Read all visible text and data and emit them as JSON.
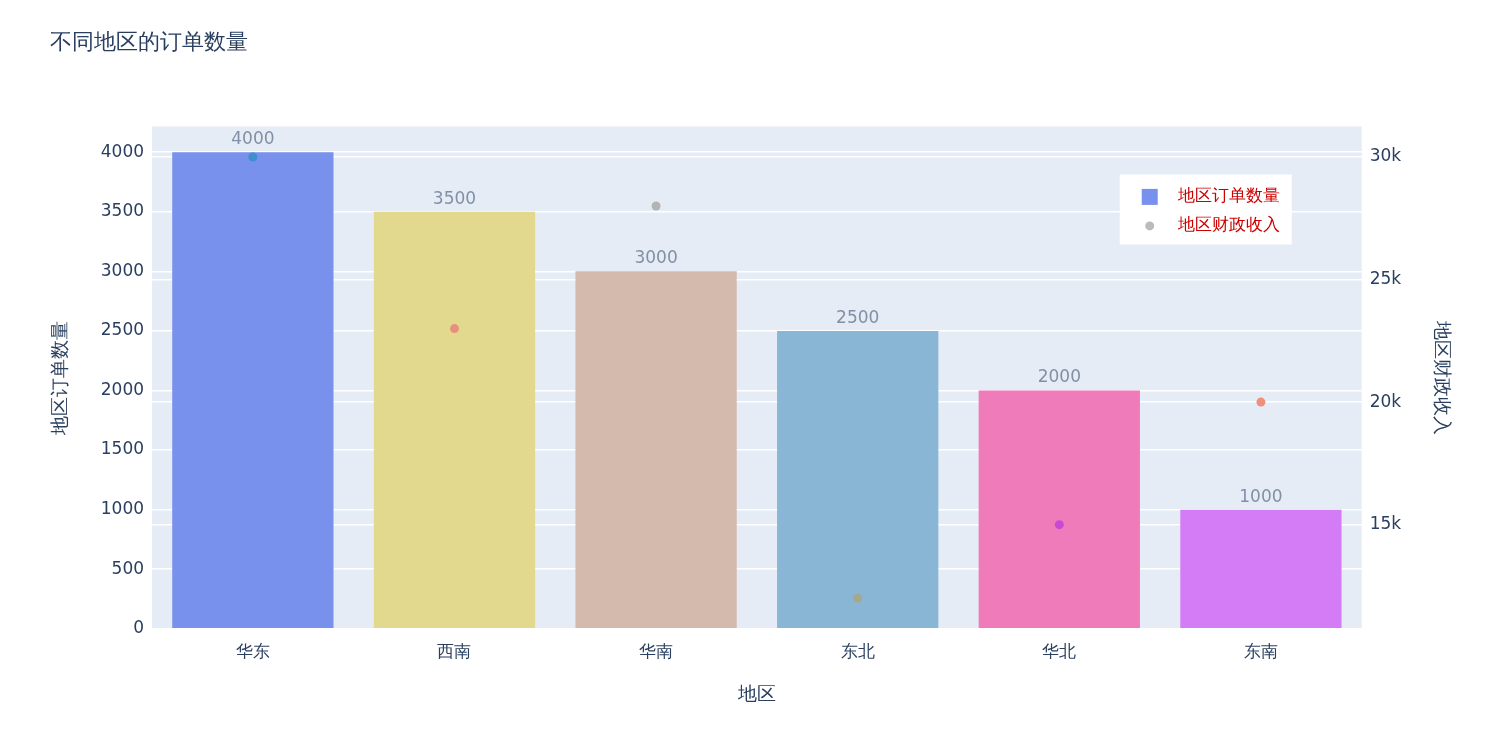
{
  "chart_data": {
    "type": "bar",
    "title": "不同地区的订单数量",
    "xlabel": "地区",
    "ylabel": "地区订单数量",
    "y2label": "地区财政收入",
    "categories": [
      "华东",
      "西南",
      "华南",
      "东北",
      "华北",
      "东南"
    ],
    "series": [
      {
        "name": "地区订单数量",
        "color": "#7891ec",
        "colors": [
          "#7891ec",
          "#e2d98f",
          "#d4b9ad",
          "#8ab6d6",
          "#ef7bbb",
          "#d47cf5"
        ],
        "values": [
          4000,
          3500,
          3000,
          2500,
          2000,
          1000
        ],
        "value_labels": [
          "4000",
          "3500",
          "3000",
          "2500",
          "2000",
          "1000"
        ]
      },
      {
        "name": "地区财政收入",
        "type": "scatter",
        "axis": "y2",
        "color": "#bbbbbb",
        "colors": [
          "#3f8fcf",
          "#e8907f",
          "#b3b3b3",
          "#a5a88a",
          "#c848d8",
          "#f0907a"
        ],
        "values": [
          30000,
          23000,
          28000,
          12000,
          15000,
          20000
        ]
      }
    ],
    "ylim": [
      0,
      4216
    ],
    "yticks": [
      0,
      500,
      1000,
      1500,
      2000,
      2500,
      3000,
      3500,
      4000
    ],
    "y2lim": [
      10750,
      31250
    ],
    "y2ticks": [
      {
        "value": 15000,
        "label": "15k"
      },
      {
        "value": 20000,
        "label": "20k"
      },
      {
        "value": 25000,
        "label": "25k"
      },
      {
        "value": 30000,
        "label": "30k"
      }
    ],
    "grid": "y",
    "legend": "top right",
    "marker": "circle"
  }
}
